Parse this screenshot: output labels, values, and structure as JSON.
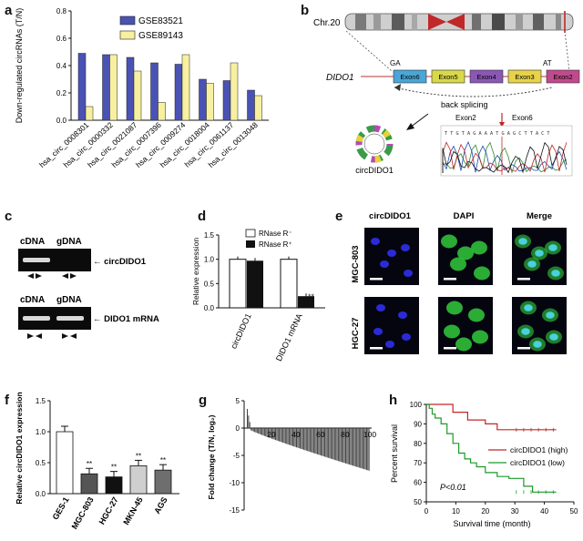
{
  "panels": {
    "a": "a",
    "b": "b",
    "c": "c",
    "d": "d",
    "e": "e",
    "f": "f",
    "g": "g",
    "h": "h"
  },
  "colors": {
    "blue": "#4a52b4",
    "yellow": "#f7f0a0",
    "green": "#1c9a2a",
    "red": "#c0282a",
    "gel": "#0b0b0b",
    "band": "#d8d8d8"
  },
  "chart_data": [
    {
      "id": "a",
      "type": "bar",
      "ylabel": "Down-regulated circRNAs (T/N)",
      "ylim": [
        0,
        0.8
      ],
      "yticks": [
        "0.0",
        "0.2",
        "0.4",
        "0.6",
        "0.8"
      ],
      "categories": [
        "hsa_circ_0008301",
        "hsa_circ_0000332",
        "hsa_circ_0021087",
        "hsa_circ_0007396",
        "hsa_circ_0009274",
        "hsa_circ_0018004",
        "hsa_circ_0061137",
        "hsa_circ_0013048"
      ],
      "series": [
        {
          "name": "GSE83521",
          "values": [
            0.49,
            0.48,
            0.46,
            0.42,
            0.41,
            0.3,
            0.29,
            0.22
          ]
        },
        {
          "name": "GSE89143",
          "values": [
            0.1,
            0.48,
            0.36,
            0.13,
            0.48,
            0.27,
            0.42,
            0.18
          ]
        }
      ]
    },
    {
      "id": "d",
      "type": "bar",
      "ylabel": "Relative expression",
      "ylim": [
        0,
        1.5
      ],
      "yticks": [
        "0.0",
        "0.5",
        "1.0",
        "1.5"
      ],
      "categories": [
        "circDIDO1",
        "DIDO1 mRNA"
      ],
      "series": [
        {
          "name": "RNase R⁻",
          "values": [
            1.0,
            1.0
          ]
        },
        {
          "name": "RNase R⁺",
          "values": [
            0.97,
            0.24
          ]
        }
      ],
      "annotations": [
        "**"
      ]
    },
    {
      "id": "f",
      "type": "bar",
      "ylabel": "Relative circDIDO1 expression",
      "ylim": [
        0,
        1.5
      ],
      "yticks": [
        "0.0",
        "0.5",
        "1.0",
        "1.5"
      ],
      "categories": [
        "GES-1",
        "MGC-803",
        "HGC-27",
        "MKN-45",
        "AGS"
      ],
      "values": [
        1.0,
        0.32,
        0.27,
        0.45,
        0.38
      ],
      "annotations": [
        "",
        "**",
        "**",
        "**",
        "**"
      ]
    },
    {
      "id": "g",
      "type": "bar",
      "ylabel": "Fold change (T/N, log₂)",
      "ylim": [
        -15,
        5
      ],
      "yticks": [
        "5",
        "0",
        "-5",
        "-10",
        "-15"
      ],
      "xticks": [
        "20",
        "40",
        "60",
        "80",
        "100"
      ],
      "n": 100
    },
    {
      "id": "h",
      "type": "line",
      "ylabel": "Percent survival",
      "xlabel": "Survival time (month)",
      "ylim": [
        50,
        100
      ],
      "yticks": [
        "50",
        "60",
        "70",
        "80",
        "90",
        "100"
      ],
      "xlim": [
        0,
        50
      ],
      "xticks": [
        "0",
        "10",
        "20",
        "30",
        "40",
        "50"
      ],
      "series": [
        {
          "name": "circDIDO1 (high)",
          "x": [
            0,
            9,
            9,
            14,
            14,
            20,
            20,
            24,
            24,
            26,
            26,
            44
          ],
          "y": [
            100,
            100,
            96,
            96,
            92,
            92,
            90,
            90,
            87,
            87,
            87,
            87
          ]
        },
        {
          "name": "circDIDO1 (low)",
          "x": [
            0,
            1,
            1,
            2,
            2,
            3,
            3,
            5,
            5,
            7,
            7,
            9,
            9,
            11,
            11,
            13,
            13,
            15,
            15,
            17,
            17,
            20,
            20,
            24,
            24,
            28,
            28,
            33,
            33,
            36,
            36,
            44
          ],
          "y": [
            100,
            100,
            98,
            98,
            95,
            95,
            93,
            93,
            90,
            90,
            85,
            85,
            80,
            80,
            75,
            75,
            72,
            72,
            70,
            70,
            68,
            68,
            65,
            65,
            63,
            63,
            62,
            62,
            58,
            58,
            55,
            55
          ]
        }
      ],
      "pvalue": "P<0.01"
    }
  ],
  "b": {
    "chr": "Chr.20",
    "gene": "DIDO1",
    "exons": [
      "Exon6",
      "Exon5",
      "Exon4",
      "Exon3",
      "Exon2"
    ],
    "ga": "GA",
    "at": "AT",
    "back_splicing": "back splicing",
    "exon2": "Exon2",
    "exon6": "Exon6",
    "seq": "T T G T A G A A A T G A G C T T A C T",
    "circ": "circDIDO1"
  },
  "c": {
    "cdna": "cDNA",
    "gdna": "gDNA",
    "circ": "← circDIDO1",
    "mrna": "← DIDO1 mRNA"
  },
  "e": {
    "col1": "circDIDO1",
    "col2": "DAPI",
    "col3": "Merge",
    "row1": "MGC-803",
    "row2": "HGC-27"
  }
}
